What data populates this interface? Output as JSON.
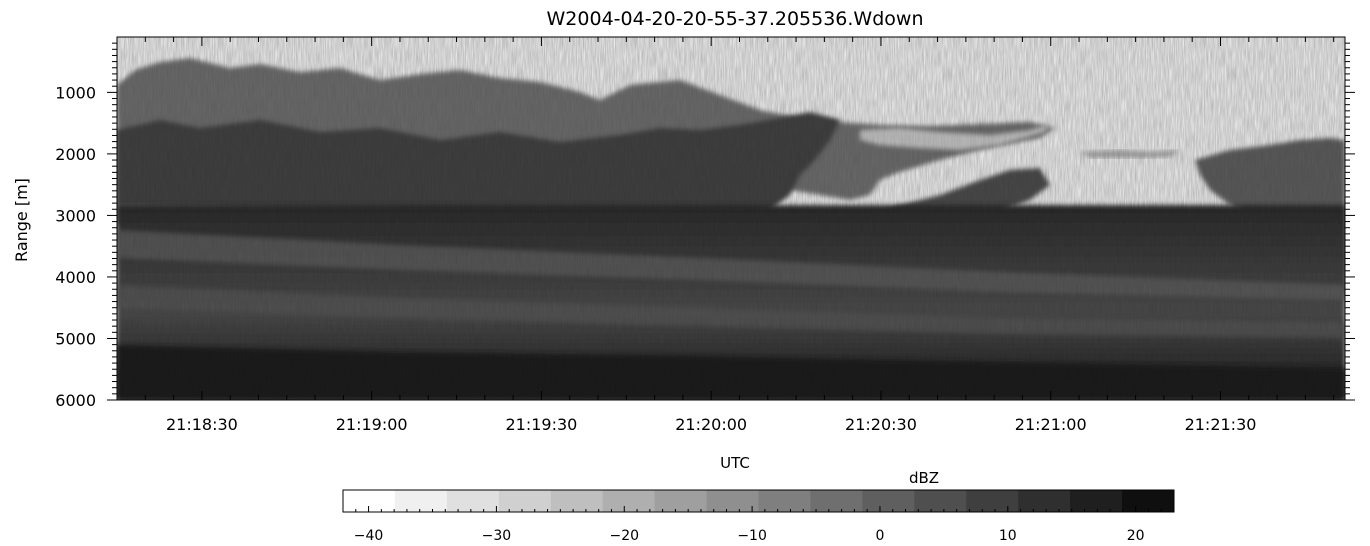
{
  "chart_data": {
    "type": "heatmap",
    "title": "W2004-04-20-20-55-37.205536.Wdown",
    "xlabel": "UTC",
    "ylabel": "Range [m]",
    "x_ticks": [
      "21:18:30",
      "21:19:00",
      "21:19:30",
      "21:20:00",
      "21:20:30",
      "21:21:00",
      "21:21:30"
    ],
    "x_range": [
      "21:18:15",
      "21:21:52"
    ],
    "y_ticks": [
      1000,
      2000,
      3000,
      4000,
      5000,
      6000
    ],
    "y_range": [
      100,
      6000
    ],
    "y_inverted": true,
    "colorbar": {
      "label": "dBZ",
      "ticks": [
        -40,
        -30,
        -20,
        -10,
        0,
        10,
        20
      ],
      "range": [
        -42,
        23
      ],
      "colors": [
        "#ffffff",
        "#f0f0f0",
        "#e0e0e0",
        "#d0d0d0",
        "#bfbfbf",
        "#afafaf",
        "#9f9f9f",
        "#8f8f8f",
        "#7f7f7f",
        "#6f6f6f",
        "#5f5f5f",
        "#4f4f4f",
        "#3f3f3f",
        "#2f2f2f",
        "#1f1f1f",
        "#0f0f0f"
      ]
    }
  }
}
